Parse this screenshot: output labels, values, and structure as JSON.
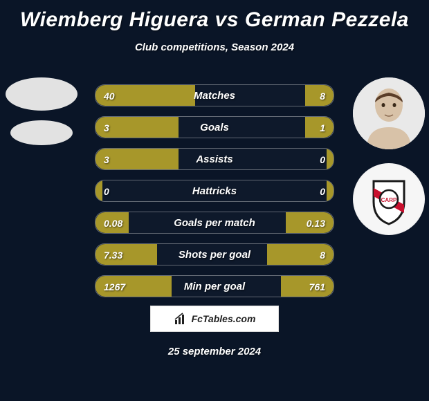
{
  "title": "Wiemberg Higuera vs German Pezzela",
  "subtitle": "Club competitions, Season 2024",
  "date": "25 september 2024",
  "watermark_text": "FcTables.com",
  "colors": {
    "bar_fill": "#a7972a",
    "bar_border": "rgba(255,255,255,0.35)",
    "bg": "#0a1527"
  },
  "max_values": {
    "matches": 48,
    "goals": 5,
    "assists": 5,
    "hattricks": 5,
    "goals_per_match": 0.5,
    "shots_per_goal": 16,
    "min_per_goal": 2200
  },
  "stats": [
    {
      "label": "Matches",
      "left_val": "40",
      "right_val": "8",
      "left_pct": 42,
      "right_pct": 12
    },
    {
      "label": "Goals",
      "left_val": "3",
      "right_val": "1",
      "left_pct": 35,
      "right_pct": 12
    },
    {
      "label": "Assists",
      "left_val": "3",
      "right_val": "0",
      "left_pct": 35,
      "right_pct": 3
    },
    {
      "label": "Hattricks",
      "left_val": "0",
      "right_val": "0",
      "left_pct": 3,
      "right_pct": 3
    },
    {
      "label": "Goals per match",
      "left_val": "0.08",
      "right_val": "0.13",
      "left_pct": 14,
      "right_pct": 20
    },
    {
      "label": "Shots per goal",
      "left_val": "7.33",
      "right_val": "8",
      "left_pct": 26,
      "right_pct": 28
    },
    {
      "label": "Min per goal",
      "left_val": "1267",
      "right_val": "761",
      "left_pct": 32,
      "right_pct": 22
    }
  ],
  "player_left": {
    "name": "Wiemberg Higuera"
  },
  "player_right": {
    "name": "German Pezzela",
    "club": "River Plate"
  }
}
